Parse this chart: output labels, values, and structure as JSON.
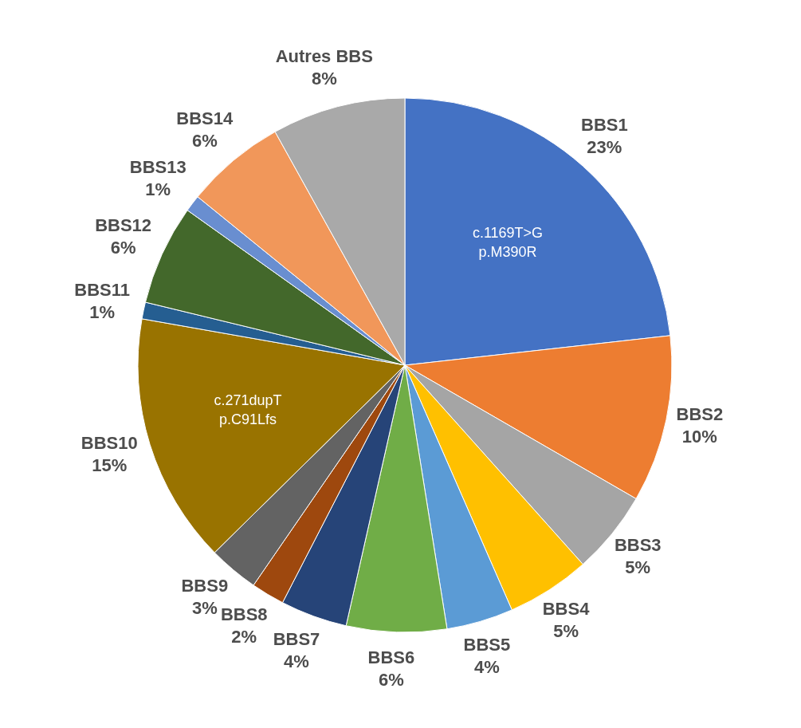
{
  "chart_data": {
    "type": "pie",
    "categories": [
      "BBS1",
      "BBS2",
      "BBS3",
      "BBS4",
      "BBS5",
      "BBS6",
      "BBS7",
      "BBS8",
      "BBS9",
      "BBS10",
      "BBS11",
      "BBS12",
      "BBS13",
      "BBS14",
      "Autres BBS"
    ],
    "values": [
      23,
      10,
      5,
      5,
      4,
      6,
      4,
      2,
      3,
      15,
      1,
      6,
      1,
      6,
      8
    ],
    "value_labels": [
      "23%",
      "10%",
      "5%",
      "5%",
      "4%",
      "6%",
      "4%",
      "2%",
      "3%",
      "15%",
      "1%",
      "6%",
      "1%",
      "6%",
      "8%"
    ],
    "colors": [
      "#4472c4",
      "#ed7d31",
      "#a5a5a5",
      "#ffc000",
      "#5b9bd5",
      "#70ad47",
      "#264478",
      "#9e480e",
      "#636363",
      "#997300",
      "#255e91",
      "#43682b",
      "#698ed0",
      "#f1975a",
      "#a9a9a9"
    ],
    "annotations": [
      {
        "text": "c.1169T>G\np.M390R",
        "x": "BBS1"
      },
      {
        "text": "c.271dupT\np.C91Lfs",
        "x": "BBS10"
      }
    ],
    "legend": false
  }
}
